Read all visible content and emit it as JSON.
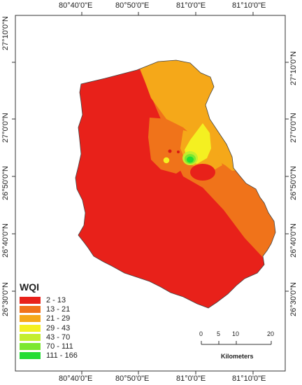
{
  "map": {
    "top_lon_labels": [
      "80°40'0\"E",
      "80°50'0\"E",
      "81°0'0\"E",
      "81°10'0\"E"
    ],
    "bottom_lon_labels": [
      "80°40'0\"E",
      "80°50'0\"E",
      "81°0'0\"E",
      "81°10'0\"E"
    ],
    "left_lat_labels": [
      "27°0'0\"N",
      "26°50'0\"N",
      "26°40'0\"N",
      "26°30'0\"N"
    ],
    "right_lat_labels": [
      "27°10'0\"N",
      "27°0'0\"N",
      "26°50'0\"N",
      "26°40'0\"N",
      "26°30'0\"N"
    ],
    "top_extra_left_label": "",
    "colors": {
      "frame": "#333333",
      "zone_red": "#e8211a",
      "zone_orange": "#f0731a",
      "zone_lightorange": "#f5a819",
      "zone_yellow": "#f4f021",
      "zone_yellowgreen": "#c4ee2e",
      "zone_green": "#7ce830",
      "zone_brightgreen": "#22dd33"
    }
  },
  "legend": {
    "title": "WQI",
    "items": [
      {
        "label": "2 - 13",
        "color": "#e8211a"
      },
      {
        "label": "13 - 21",
        "color": "#f0731a"
      },
      {
        "label": "21 - 29",
        "color": "#f5a819"
      },
      {
        "label": "29 - 43",
        "color": "#f4f021"
      },
      {
        "label": "43 - 70",
        "color": "#c4ee2e"
      },
      {
        "label": "70 - 111",
        "color": "#7ce830"
      },
      {
        "label": "111 - 166",
        "color": "#22dd33"
      }
    ]
  },
  "scalebar": {
    "ticks": [
      "0",
      "5",
      "10",
      "20"
    ],
    "unit": "Kilometers"
  }
}
